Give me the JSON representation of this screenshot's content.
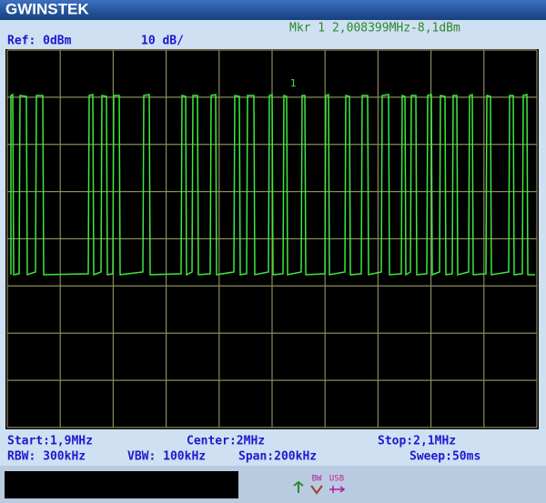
{
  "header": {
    "logo": "GWINSTEK",
    "ref": "Ref: 0dBm",
    "scale": "10 dB/",
    "marker": "Mkr 1 2,008399MHz-8,1dBm"
  },
  "display": {
    "marker_tag": "1"
  },
  "footer": {
    "start": "Start:1,9MHz",
    "center": "Center:2MHz",
    "stop": "Stop:2,1MHz",
    "rbw": "RBW: 300kHz",
    "vbw": "VBW: 100kHz",
    "span": "Span:200kHz",
    "sweep": "Sweep:50ms"
  },
  "status": {
    "bw": "BW",
    "usb": "USB"
  }
}
